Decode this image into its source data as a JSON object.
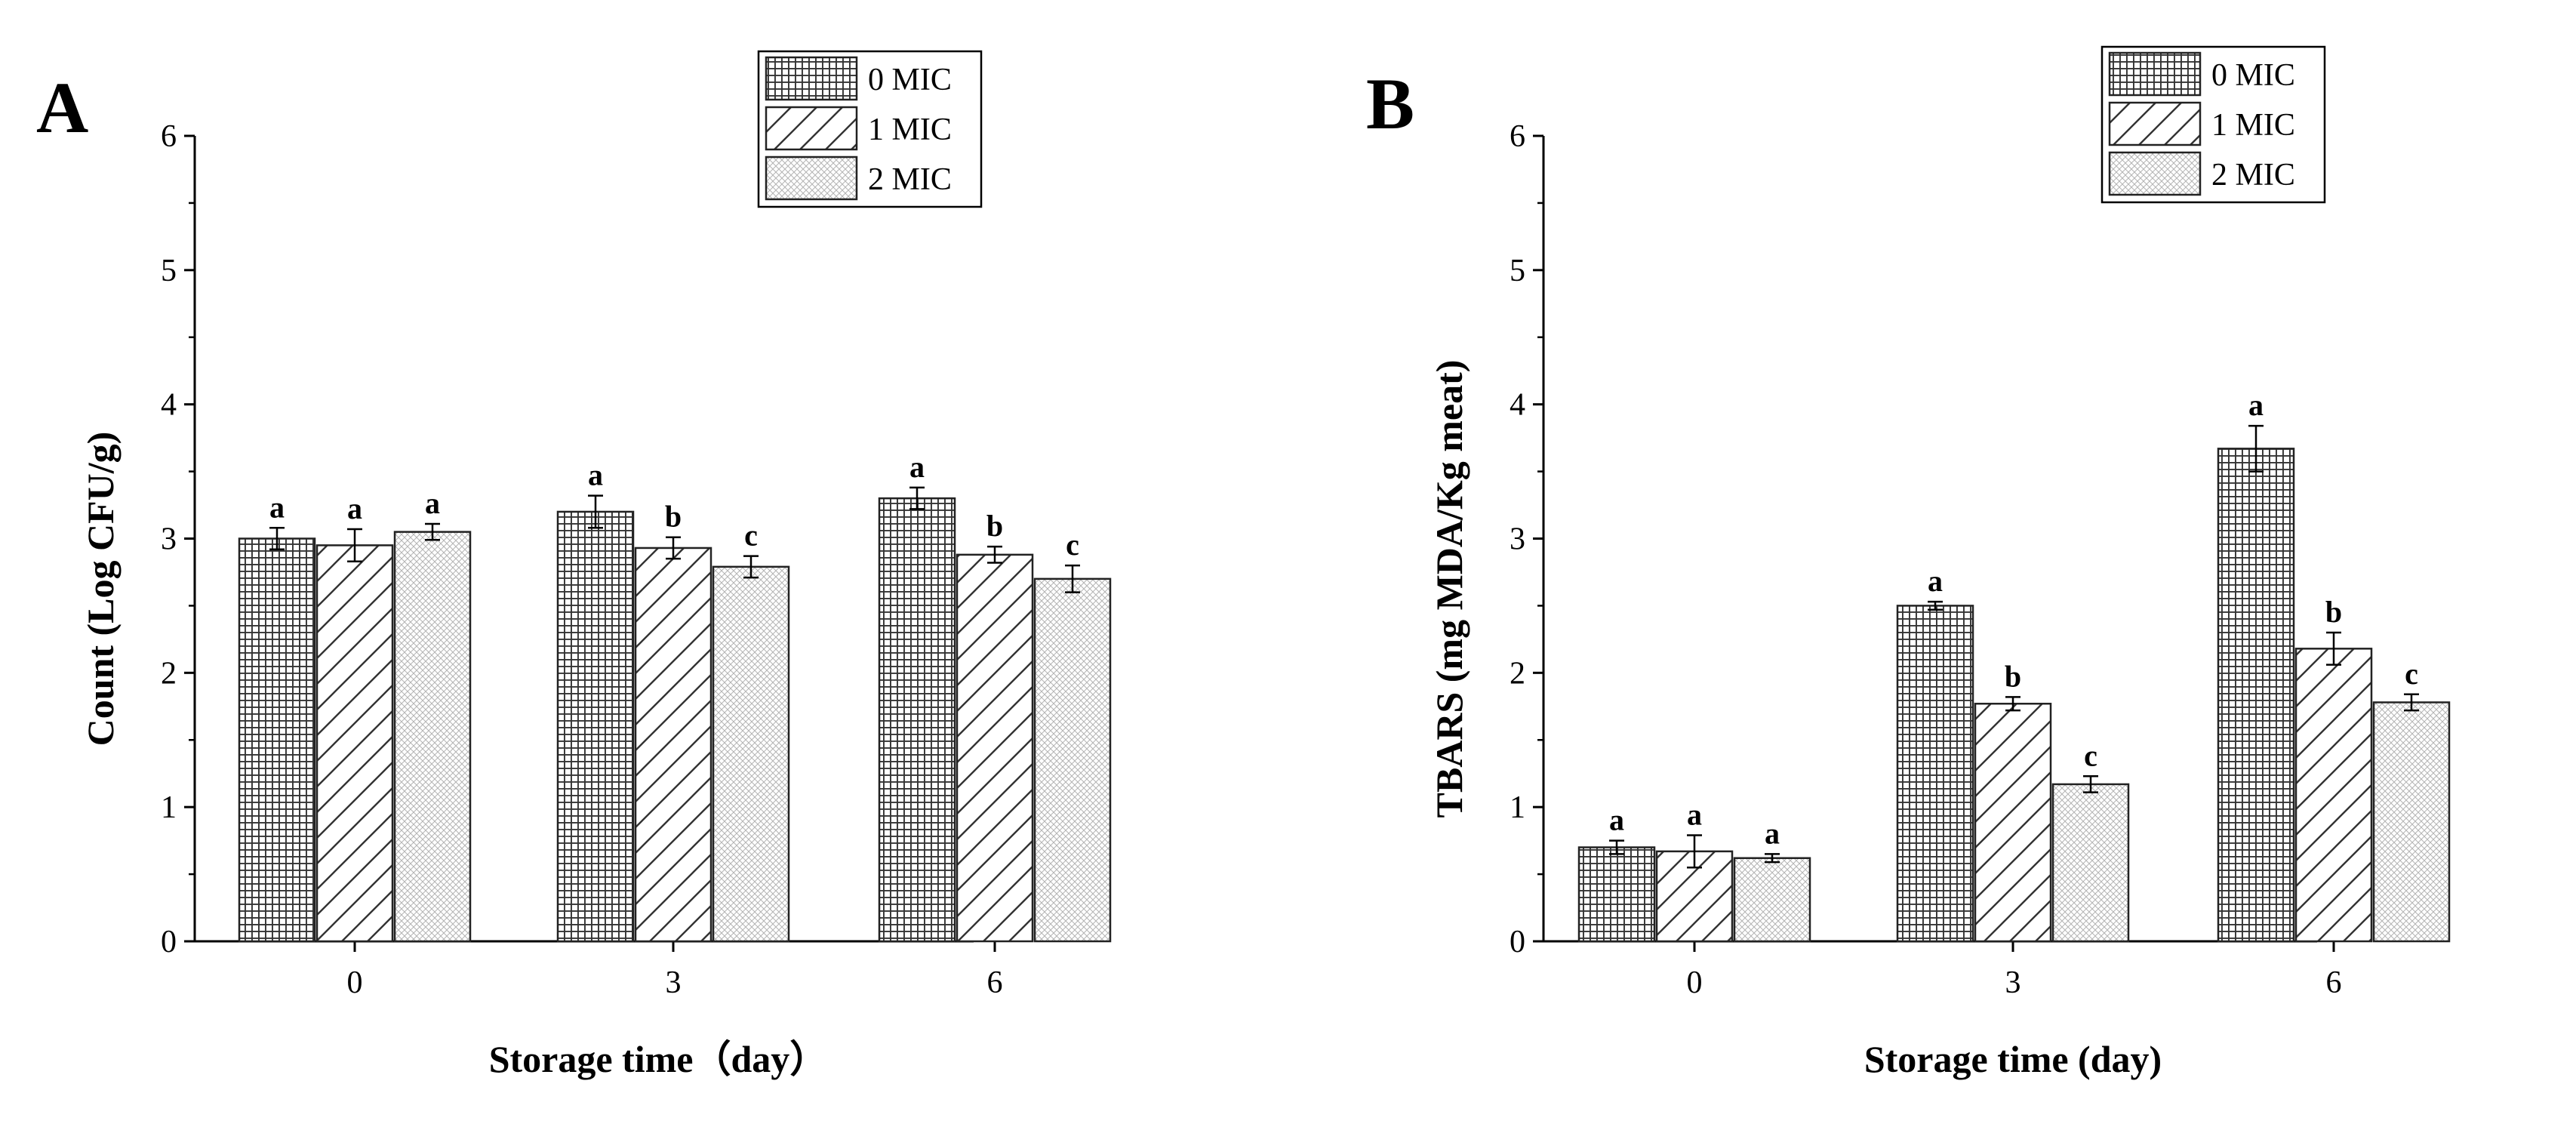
{
  "chart_data": [
    {
      "panel": "A",
      "type": "bar",
      "title": "",
      "xlabel": "Storage time（day）",
      "ylabel": "Count (Log CFU/g)",
      "categories": [
        "0",
        "3",
        "6"
      ],
      "ylim": [
        0,
        6
      ],
      "yticks": [
        "0",
        "1",
        "2",
        "3",
        "4",
        "5",
        "6"
      ],
      "legend_position": "top-right",
      "series": [
        {
          "name": "0 MIC",
          "pattern": "grid",
          "values": [
            3.0,
            3.2,
            3.3
          ],
          "errors": [
            0.08,
            0.12,
            0.08
          ],
          "letters": [
            "a",
            "a",
            "a"
          ]
        },
        {
          "name": "1 MIC",
          "pattern": "diagonal",
          "values": [
            2.95,
            2.93,
            2.88
          ],
          "errors": [
            0.12,
            0.08,
            0.06
          ],
          "letters": [
            "a",
            "b",
            "b"
          ]
        },
        {
          "name": "2 MIC",
          "pattern": "dots",
          "values": [
            3.05,
            2.79,
            2.7
          ],
          "errors": [
            0.06,
            0.08,
            0.1
          ],
          "letters": [
            "a",
            "c",
            "c"
          ]
        }
      ]
    },
    {
      "panel": "B",
      "type": "bar",
      "title": "",
      "xlabel": "Storage time (day)",
      "ylabel": "TBARS (mg MDA/Kg meat)",
      "categories": [
        "0",
        "3",
        "6"
      ],
      "ylim": [
        0,
        6
      ],
      "yticks": [
        "0",
        "1",
        "2",
        "3",
        "4",
        "5",
        "6"
      ],
      "legend_position": "top-right",
      "series": [
        {
          "name": "0 MIC",
          "pattern": "grid",
          "values": [
            0.7,
            2.5,
            3.67
          ],
          "errors": [
            0.05,
            0.03,
            0.17
          ],
          "letters": [
            "a",
            "a",
            "a"
          ]
        },
        {
          "name": "1 MIC",
          "pattern": "diagonal",
          "values": [
            0.67,
            1.77,
            2.18
          ],
          "errors": [
            0.12,
            0.05,
            0.12
          ],
          "letters": [
            "a",
            "b",
            "b"
          ]
        },
        {
          "name": "2 MIC",
          "pattern": "dots",
          "values": [
            0.62,
            1.17,
            1.78
          ],
          "errors": [
            0.03,
            0.06,
            0.06
          ],
          "letters": [
            "a",
            "c",
            "c"
          ]
        }
      ]
    }
  ]
}
